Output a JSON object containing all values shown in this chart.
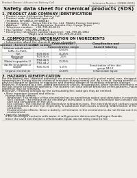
{
  "bg_color": "#f0ede8",
  "header_top_left": "Product Name: Lithium Ion Battery Cell",
  "header_top_right": "Substance Number: 99PA99-00015\nEstablishment / Revision: Dec.7.2010",
  "main_title": "Safety data sheet for chemical products (SDS)",
  "section1_title": "1. PRODUCT AND COMPANY IDENTIFICATION",
  "section1_lines": [
    "  • Product name: Lithium Ion Battery Cell",
    "  • Product code: Cylindrical-type cell",
    "    (IY1860U, IVY1865U, IVY1865A)",
    "  • Company name:    Sanyo Electric Co., Ltd.  Mobile Energy Company",
    "  • Address:    200-1  Kamitakamatsu, Sumoto-City, Hyogo, Japan",
    "  • Telephone number:   +81-799-26-4111",
    "  • Fax number:  +81-799-26-4120",
    "  • Emergency telephone number (daytime): +81-799-26-1962",
    "                               (Night and holiday): +81-799-26-2101"
  ],
  "section2_title": "2. COMPOSITION / INFORMATION ON INGREDIENTS",
  "section2_subtitle": "  • Substance or preparation: Preparation",
  "section2_sub2": "  • Information about the chemical nature of product:",
  "table_col_names": [
    "Common chemical name",
    "CAS number",
    "Concentration /\nConcentration range",
    "Classification and\nhazard labeling"
  ],
  "table_rows": [
    [
      "Lithium cobalt oxide\n(LiMn-Co-Pb)O₂",
      "-",
      "30-60%",
      "-"
    ],
    [
      "Iron",
      "7439-89-6",
      "15-25%",
      "-"
    ],
    [
      "Aluminum",
      "7429-90-5",
      "2-5%",
      "-"
    ],
    [
      "Graphite\n(Metal in graphite-1)\n(Al-Mn in graphite-1)",
      "7782-42-5\n7782-44-2",
      "10-25%",
      "-"
    ],
    [
      "Copper",
      "7440-50-8",
      "5-15%",
      "Sensitization of the skin\ngroup R43.2"
    ],
    [
      "Organic electrolyte",
      "-",
      "10-20%",
      "Inflammable liquid"
    ]
  ],
  "section3_title": "3. HAZARDS IDENTIFICATION",
  "section3_para1": [
    "For the battery can, chemical materials are stored in a hermetically sealed metal case, designed to withstand",
    "temperatures during electro-chemical reactions during normal use. As a result, during normal use, there is no",
    "physical danger of ignition or explosion and thermal danger of hazardous materials leakage.",
    "However, if exposed to a fire, added mechanical shocks, decomposed, when electric/electronic machinery maluse,",
    "the gas nozzle can/will be operated. The battery cell case will be breached or fire-patterns, hazardous",
    "materials may be released.",
    "Moreover, if heated strongly by the surrounding fire, solid gas may be emitted."
  ],
  "section3_bullet1": "  • Most important hazard and effects:",
  "section3_health": [
    "    Human health effects:",
    "      Inhalation: The release of the electrolyte has an anesthesia action and stimulates in respiratory tract.",
    "      Skin contact: The release of the electrolyte stimulates a skin. The electrolyte skin contact causes a",
    "      sore and stimulation on the skin.",
    "      Eye contact: The release of the electrolyte stimulates eyes. The electrolyte eye contact causes a sore",
    "      and stimulation on the eye. Especially, a substance that causes a strong inflammation of the eye is",
    "      contained.",
    "      Environmental effects: Since a battery cell remains in the environment, do not throw out it into the",
    "      environment."
  ],
  "section3_bullet2": "  • Specific hazards:",
  "section3_specific": [
    "    If the electrolyte contacts with water, it will generate detrimental hydrogen fluoride.",
    "    Since the used electrolyte is inflammable liquid, do not bring close to fire."
  ],
  "fs_tiny": 2.8,
  "fs_header": 3.2,
  "fs_title": 5.2,
  "fs_section": 3.8,
  "fs_body": 2.9,
  "fs_table_hdr": 2.8,
  "fs_table_cell": 2.7,
  "text_color": "#1a1a1a",
  "gray_text": "#555555",
  "line_color": "#999999",
  "table_line": "#888888",
  "table_header_bg": "#d8d8d8",
  "table_row_bg_odd": "#ffffff",
  "table_row_bg_even": "#eeeeee"
}
